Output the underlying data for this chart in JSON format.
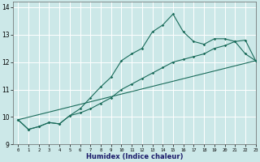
{
  "xlabel": "Humidex (Indice chaleur)",
  "background_color": "#cce8e8",
  "grid_color": "#ffffff",
  "line_color": "#1a6b5a",
  "xlim": [
    -0.5,
    23
  ],
  "ylim": [
    9,
    14.2
  ],
  "yticks": [
    9,
    10,
    11,
    12,
    13,
    14
  ],
  "xticks": [
    0,
    1,
    2,
    3,
    4,
    5,
    6,
    7,
    8,
    9,
    10,
    11,
    12,
    13,
    14,
    15,
    16,
    17,
    18,
    19,
    20,
    21,
    22,
    23
  ],
  "series1_x": [
    0,
    1,
    2,
    3,
    4,
    5,
    6,
    7,
    8,
    9,
    10,
    11,
    12,
    13,
    14,
    15,
    16,
    17,
    18,
    19,
    20,
    21,
    22,
    23
  ],
  "series1_y": [
    9.9,
    9.55,
    9.65,
    9.8,
    9.75,
    10.05,
    10.3,
    10.7,
    11.1,
    11.45,
    12.05,
    12.3,
    12.5,
    13.1,
    13.35,
    13.75,
    13.1,
    12.75,
    12.65,
    12.85,
    12.85,
    12.75,
    12.3,
    12.05
  ],
  "series2_x": [
    0,
    1,
    2,
    3,
    4,
    5,
    6,
    7,
    8,
    9,
    10,
    11,
    12,
    13,
    14,
    15,
    16,
    17,
    18,
    19,
    20,
    21,
    22,
    23
  ],
  "series2_y": [
    9.9,
    9.55,
    9.65,
    9.8,
    9.75,
    10.05,
    10.15,
    10.3,
    10.5,
    10.7,
    11.0,
    11.2,
    11.4,
    11.6,
    11.8,
    12.0,
    12.1,
    12.2,
    12.3,
    12.5,
    12.6,
    12.75,
    12.8,
    12.05
  ],
  "series3_x": [
    0,
    23
  ],
  "series3_y": [
    9.9,
    12.05
  ]
}
